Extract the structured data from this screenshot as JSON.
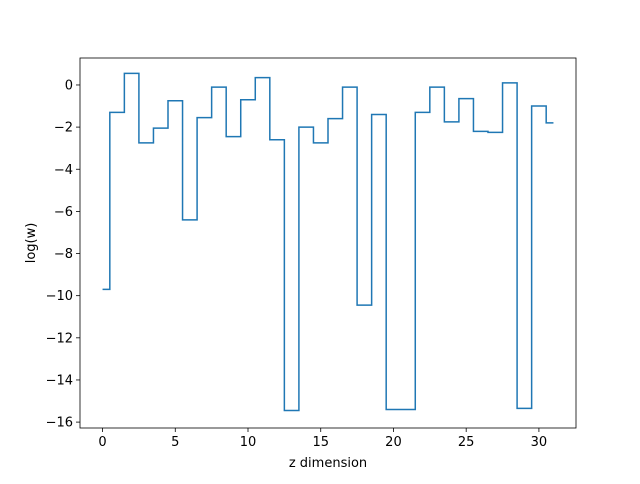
{
  "chart_data": {
    "type": "line",
    "drawstyle": "steps-mid",
    "title": "",
    "xlabel": "z dimension",
    "ylabel": "log(w)",
    "xlim": [
      -1.55,
      32.55
    ],
    "ylim": [
      -16.28,
      1.28
    ],
    "xticks": [
      0,
      5,
      10,
      15,
      20,
      25,
      30
    ],
    "yticks": [
      -16,
      -14,
      -12,
      -10,
      -8,
      -6,
      -4,
      -2,
      0
    ],
    "grid": false,
    "legend": "none",
    "series_color": "#1f77b4",
    "series": [
      {
        "x": [
          0,
          1,
          2,
          3,
          4,
          5,
          6,
          7,
          8,
          9,
          10,
          11,
          12,
          13,
          14,
          15,
          16,
          17,
          18,
          19,
          20,
          21,
          22,
          23,
          24,
          25,
          26,
          27,
          28,
          29,
          30,
          31
        ],
        "values": [
          -9.7,
          -1.3,
          0.55,
          -2.75,
          -2.05,
          -0.75,
          -6.4,
          -1.55,
          -0.1,
          -2.45,
          -0.7,
          0.35,
          -2.6,
          -15.45,
          -2.0,
          -2.75,
          -1.6,
          -0.1,
          -10.45,
          -1.4,
          -15.4,
          -15.4,
          -1.3,
          -0.1,
          -1.75,
          -0.65,
          -2.2,
          -2.25,
          0.1,
          -15.35,
          -1.0,
          -1.8
        ]
      }
    ]
  }
}
